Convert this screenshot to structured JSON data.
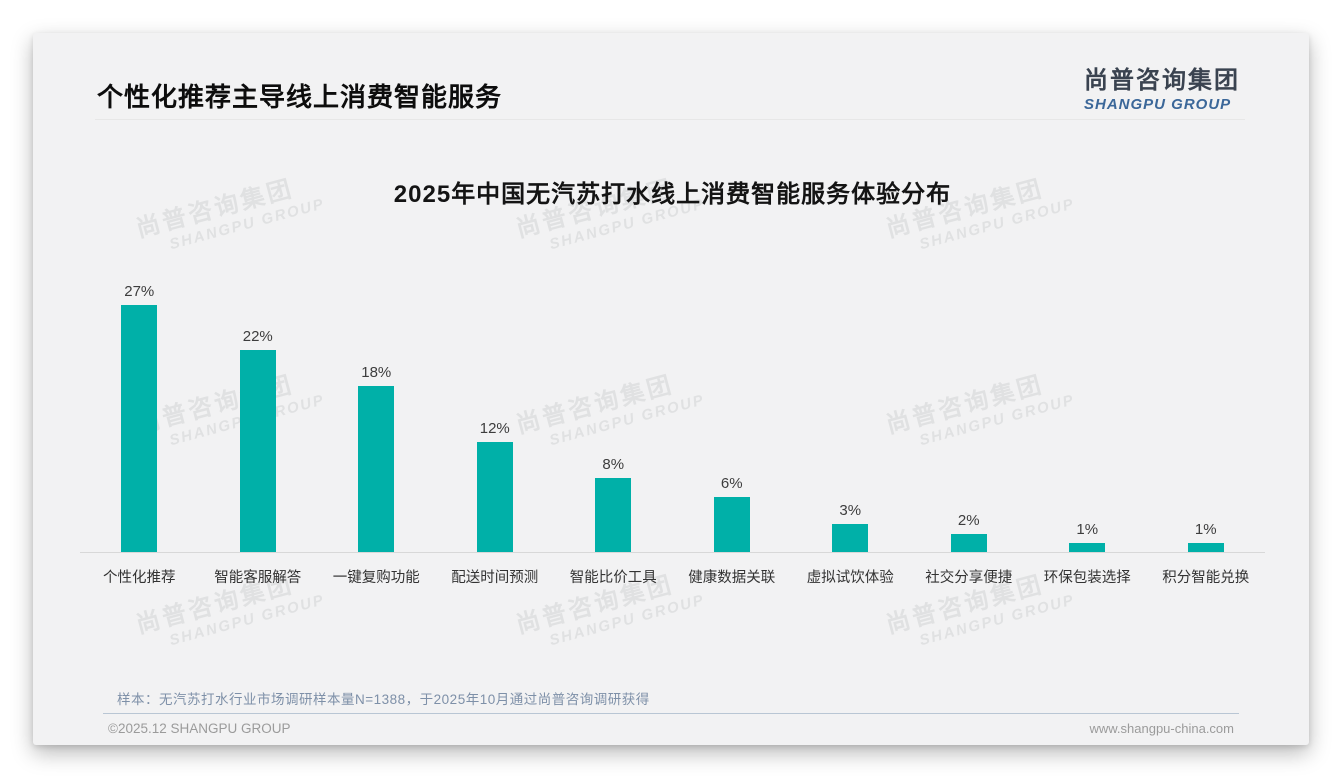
{
  "slide": {
    "title": "个性化推荐主导线上消费智能服务",
    "logo": {
      "name_cn": "尚普咨询集团",
      "name_en": "SHANGPU GROUP"
    },
    "watermark": {
      "line1": "尚普咨询集团",
      "line2": "SHANGPU GROUP"
    },
    "note": "样本：无汽苏打水行业市场调研样本量N=1388，于2025年10月通过尚普咨询调研获得",
    "footer": {
      "copyright": "©2025.12 SHANGPU GROUP",
      "website": "www.shangpu-china.com"
    }
  },
  "chart_data": {
    "type": "bar",
    "title": "2025年中国无汽苏打水线上消费智能服务体验分布",
    "categories": [
      "个性化推荐",
      "智能客服解答",
      "一键复购功能",
      "配送时间预测",
      "智能比价工具",
      "健康数据关联",
      "虚拟试饮体验",
      "社交分享便捷",
      "环保包装选择",
      "积分智能兑换"
    ],
    "values": [
      27,
      22,
      18,
      12,
      8,
      6,
      3,
      2,
      1,
      1
    ],
    "value_labels": [
      "27%",
      "22%",
      "18%",
      "12%",
      "8%",
      "6%",
      "3%",
      "2%",
      "1%",
      "1%"
    ],
    "unit": "%",
    "ylim": [
      0,
      30
    ],
    "grid": false,
    "legend_position": "none",
    "bar_color": "#00b0a8"
  },
  "colors": {
    "bar": "#00b0a8",
    "slide_background": "#f2f2f3",
    "logo_blue": "#3b6799",
    "note_blue_gray": "#7e90a8"
  }
}
